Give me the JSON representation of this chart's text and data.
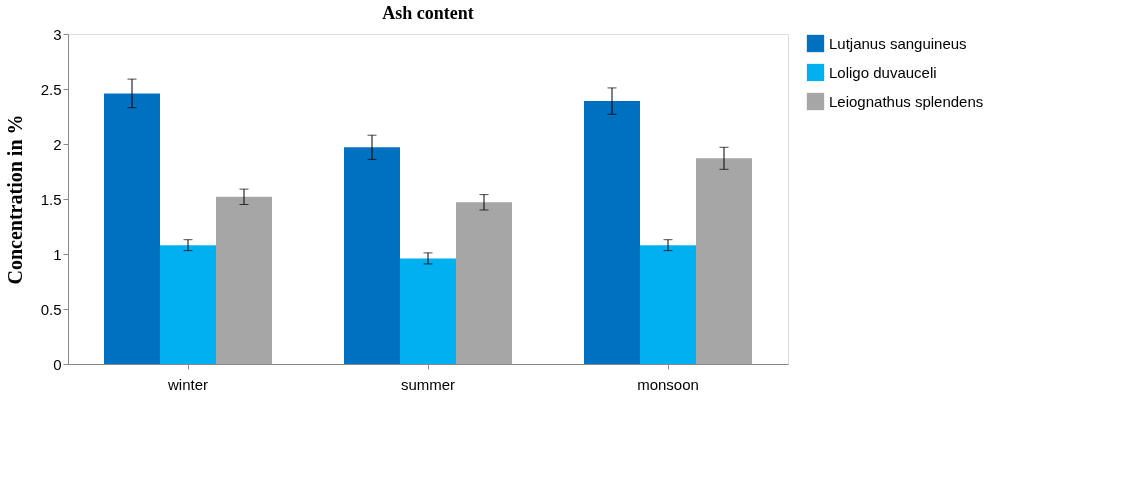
{
  "chart_data": {
    "type": "bar",
    "title": "Ash content",
    "ylabel": "Concentration in %",
    "categories": [
      "winter",
      "summer",
      "monsoon"
    ],
    "series": [
      {
        "name": "Lutjanus sanguineus",
        "color": "#0070c0",
        "values": [
          2.46,
          1.97,
          2.39
        ],
        "errors": [
          0.13,
          0.11,
          0.12
        ]
      },
      {
        "name": "Loligo duvauceli",
        "color": "#00b0f0",
        "values": [
          1.08,
          0.96,
          1.08
        ],
        "errors": [
          0.05,
          0.05,
          0.05
        ]
      },
      {
        "name": "Leiognathus splendens",
        "color": "#a6a6a6",
        "values": [
          1.52,
          1.47,
          1.87
        ],
        "errors": [
          0.07,
          0.07,
          0.1
        ]
      }
    ],
    "ylim": [
      0,
      3
    ],
    "yticks": [
      0,
      0.5,
      1,
      1.5,
      2,
      2.5,
      3
    ],
    "grid": false,
    "legend": "right"
  }
}
